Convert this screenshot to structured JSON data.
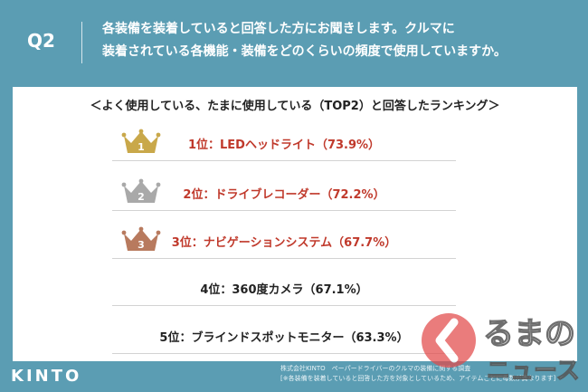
{
  "header": {
    "q_label": "Q2",
    "question_line1": "各装備を装着していると回答した方にお聞きします。クルマに",
    "question_line2": "装着されている各機能・装備をどのくらいの頻度で使用していますか。"
  },
  "panel": {
    "subtitle": "＜よく使用している、たまに使用している（TOP2）と回答したランキング＞"
  },
  "rankings": [
    {
      "text": "1位：LEDヘッドライト（73.9%）",
      "crown": "gold-crown-icon",
      "crown_color": "#c9a84a",
      "number": "1",
      "value": 73.9
    },
    {
      "text": "2位：ドライブレコーダー（72.2%）",
      "crown": "silver-crown-icon",
      "crown_color": "#a9a9a9",
      "number": "2",
      "value": 72.2
    },
    {
      "text": "3位：ナビゲーションシステム（67.7%）",
      "crown": "bronze-crown-icon",
      "crown_color": "#b87a5e",
      "number": "3",
      "value": 67.7
    },
    {
      "text": "4位：360度カメラ（67.1%）",
      "value": 67.1
    },
    {
      "text": "5位：ブラインドスポットモニター（63.3%）",
      "value": 63.3
    }
  ],
  "footer": {
    "logo": "KINTO",
    "credit_line1": "株式会社KINTO　ペーパードライバーのクルマの装備に関する調査",
    "credit_line2": "[※各装備を装着していると回答した方を対象としているため、アイテムごとに母数が異なります]"
  },
  "watermark": {
    "text_top": "るまの",
    "text_bottom": "ニュース"
  },
  "colors": {
    "background": "#5b9db3",
    "accent_red": "#c0392b",
    "gold": "#c9a84a",
    "silver": "#a9a9a9",
    "bronze": "#b87a5e"
  }
}
